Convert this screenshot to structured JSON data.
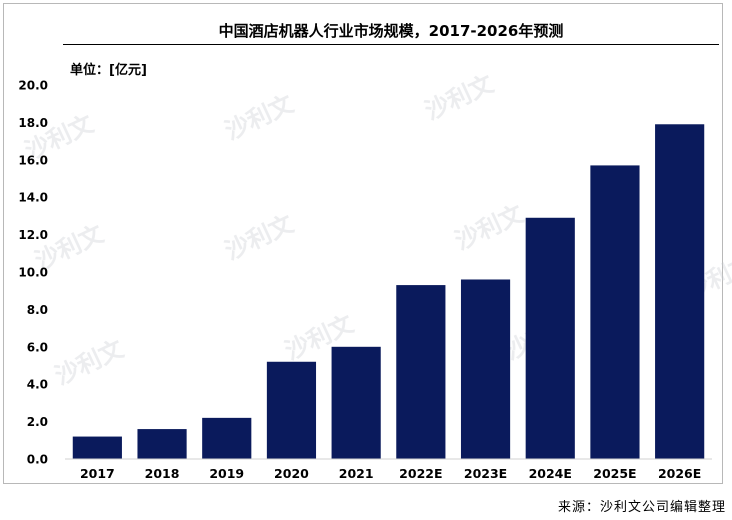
{
  "chart_data": {
    "type": "bar",
    "title": "中国酒店机器人行业市场规模，2017-2026年预测",
    "unit_label": "单位：[亿元]",
    "categories": [
      "2017",
      "2018",
      "2019",
      "2020",
      "2021",
      "2022E",
      "2023E",
      "2024E",
      "2025E",
      "2026E"
    ],
    "values": [
      1.2,
      1.6,
      2.2,
      5.2,
      6.0,
      9.3,
      9.6,
      12.9,
      15.7,
      17.9
    ],
    "yticks": [
      "0.0",
      "2.0",
      "4.0",
      "6.0",
      "8.0",
      "10.0",
      "12.0",
      "14.0",
      "16.0",
      "18.0",
      "20.0"
    ],
    "ylim": [
      0,
      20
    ],
    "bar_color": "#0a1a5c",
    "grid": false
  },
  "watermark": "沙利文",
  "source": "来源：沙利文公司编辑整理"
}
